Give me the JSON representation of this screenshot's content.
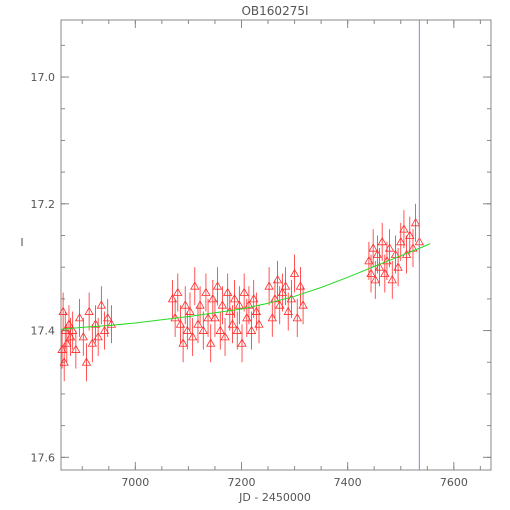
{
  "chart_data": {
    "type": "scatter",
    "title": "OB160275I",
    "xlabel": "JD - 2450000",
    "ylabel": "I",
    "xlim": [
      6860,
      7670
    ],
    "ylim": [
      17.62,
      16.91
    ],
    "y_inverted": true,
    "xticks": [
      "7000",
      "7200",
      "7400",
      "7600"
    ],
    "yticks": [
      "17.0",
      "17.2",
      "17.4",
      "17.6"
    ],
    "grid": false,
    "colors": {
      "points": "#ff2a2a",
      "model": "#22dd22",
      "marker_line": "#8888cc",
      "axes": "#888888"
    },
    "marker_line_x": 7535,
    "model_curve": {
      "x": [
        6860,
        6900,
        6950,
        7000,
        7050,
        7100,
        7150,
        7200,
        7250,
        7300,
        7350,
        7400,
        7450,
        7500,
        7550,
        7555
      ],
      "y": [
        17.398,
        17.395,
        17.392,
        17.388,
        17.383,
        17.378,
        17.372,
        17.366,
        17.357,
        17.346,
        17.332,
        17.316,
        17.299,
        17.282,
        17.265,
        17.263
      ]
    },
    "series": [
      {
        "x": [
          6862,
          6864,
          6866,
          6868,
          6871,
          6875,
          6878,
          6882,
          6888,
          6895,
          6902,
          6908,
          6913,
          6919,
          6925,
          6930,
          6936,
          6942,
          6948,
          6955,
          7070,
          7075,
          7080,
          7085,
          7090,
          7094,
          7098,
          7103,
          7108,
          7112,
          7118,
          7122,
          7128,
          7133,
          7137,
          7142,
          7146,
          7150,
          7155,
          7160,
          7164,
          7169,
          7174,
          7178,
          7183,
          7187,
          7192,
          7196,
          7201,
          7205,
          7210,
          7214,
          7219,
          7223,
          7228,
          7233,
          7252,
          7258,
          7263,
          7268,
          7272,
          7277,
          7283,
          7288,
          7294,
          7300,
          7305,
          7311,
          7316,
          7440,
          7444,
          7448,
          7452,
          7456,
          7460,
          7465,
          7470,
          7474,
          7479,
          7484,
          7490,
          7495,
          7500,
          7506,
          7511,
          7517,
          7523,
          7528,
          7535
        ],
        "y": [
          17.43,
          17.37,
          17.45,
          17.4,
          17.42,
          17.39,
          17.41,
          17.4,
          17.43,
          17.38,
          17.41,
          17.45,
          17.37,
          17.42,
          17.39,
          17.41,
          17.36,
          17.4,
          17.38,
          17.39,
          17.35,
          17.38,
          17.34,
          17.39,
          17.42,
          17.36,
          17.4,
          17.37,
          17.41,
          17.33,
          17.39,
          17.36,
          17.4,
          17.34,
          17.38,
          17.42,
          17.35,
          17.38,
          17.33,
          17.4,
          17.36,
          17.41,
          17.34,
          17.37,
          17.39,
          17.35,
          17.4,
          17.36,
          17.42,
          17.34,
          17.38,
          17.36,
          17.4,
          17.35,
          17.37,
          17.39,
          17.33,
          17.38,
          17.35,
          17.32,
          17.36,
          17.34,
          17.33,
          17.37,
          17.35,
          17.31,
          17.38,
          17.33,
          17.36,
          17.29,
          17.31,
          17.27,
          17.32,
          17.28,
          17.3,
          17.26,
          17.31,
          17.29,
          17.27,
          17.32,
          17.28,
          17.3,
          17.26,
          17.24,
          17.28,
          17.25,
          17.27,
          17.23,
          17.26
        ],
        "err": 0.03
      }
    ]
  }
}
